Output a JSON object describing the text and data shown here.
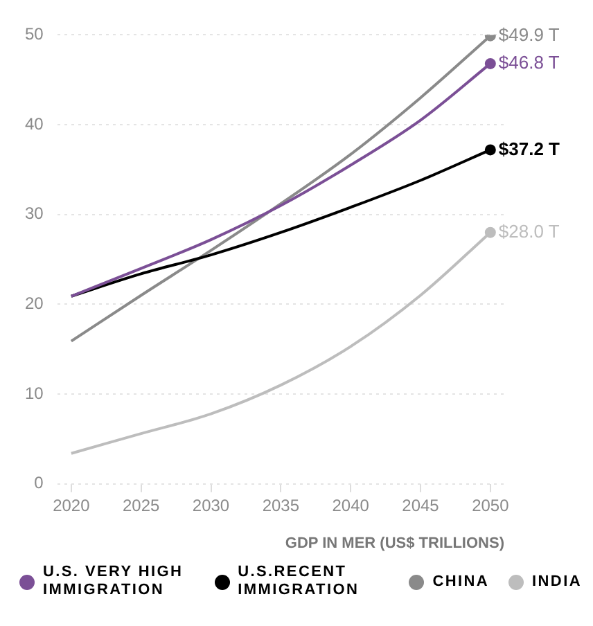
{
  "chart_data": {
    "type": "line",
    "xlabel": "GDP IN MER (US$ TRILLIONS)",
    "x": [
      2020,
      2025,
      2030,
      2035,
      2040,
      2045,
      2050
    ],
    "xlim": [
      2019,
      2051
    ],
    "xticks": [
      2020,
      2025,
      2030,
      2035,
      2040,
      2045,
      2050
    ],
    "ylim": [
      0,
      50
    ],
    "yticks": [
      0,
      10,
      20,
      30,
      40,
      50
    ],
    "grid": "y",
    "legend": "bottom",
    "series": [
      {
        "name": "U.S. VERY HIGH IMMIGRATION",
        "color": "#7b4f96",
        "values": [
          20.9,
          24,
          27.2,
          31,
          35.5,
          40.5,
          46.8
        ],
        "value_labels": [
          null,
          null,
          null,
          null,
          null,
          null,
          "$46.8 T"
        ]
      },
      {
        "name": "U.S.RECENT IMMIGRATION",
        "color": "#000000",
        "values": [
          20.9,
          23.4,
          25.5,
          28,
          30.8,
          33.8,
          37.2
        ],
        "value_labels": [
          null,
          null,
          null,
          null,
          null,
          null,
          "$37.2 T"
        ]
      },
      {
        "name": "CHINA",
        "color": "#8a8a8a",
        "values": [
          15.9,
          21,
          26,
          31.2,
          36.7,
          43,
          49.9
        ],
        "value_labels": [
          null,
          null,
          null,
          null,
          null,
          null,
          "$49.9 T"
        ]
      },
      {
        "name": "INDIA",
        "color": "#bdbdbd",
        "values": [
          3.4,
          5.6,
          7.8,
          11,
          15.3,
          21,
          28.0
        ],
        "value_labels": [
          null,
          null,
          null,
          null,
          null,
          null,
          "$28.0 T"
        ]
      }
    ]
  }
}
